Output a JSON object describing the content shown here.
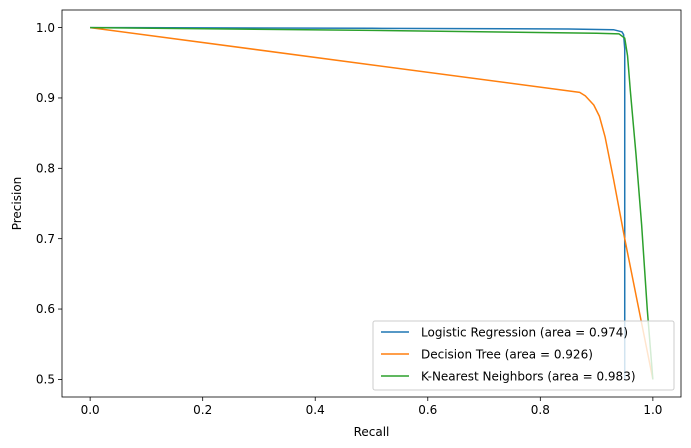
{
  "chart_data": {
    "type": "line",
    "title": "",
    "xlabel": "Recall",
    "ylabel": "Precision",
    "xlim": [
      -0.05,
      1.05
    ],
    "ylim": [
      0.475,
      1.025
    ],
    "xticks": [
      0.0,
      0.2,
      0.4,
      0.6,
      0.8,
      1.0
    ],
    "xtick_labels": [
      "0.0",
      "0.2",
      "0.4",
      "0.6",
      "0.8",
      "1.0"
    ],
    "yticks": [
      0.5,
      0.6,
      0.7,
      0.8,
      0.9,
      1.0
    ],
    "ytick_labels": [
      "0.5",
      "0.6",
      "0.7",
      "0.8",
      "0.9",
      "1.0"
    ],
    "grid": false,
    "legend_position": "lower right",
    "series": [
      {
        "name": "Logistic Regression (area = 0.974)",
        "color": "#1f77b4",
        "x": [
          0.0,
          0.5,
          0.85,
          0.93,
          0.945,
          0.948,
          0.95,
          0.95
        ],
        "y": [
          1.0,
          0.999,
          0.998,
          0.997,
          0.994,
          0.99,
          0.97,
          0.5
        ]
      },
      {
        "name": "Decision Tree (area = 0.926)",
        "color": "#ff7f0e",
        "x": [
          0.0,
          0.5,
          0.87,
          0.88,
          0.895,
          0.905,
          0.915,
          0.93,
          0.95,
          0.97,
          0.99,
          1.0
        ],
        "y": [
          1.0,
          0.947,
          0.908,
          0.903,
          0.89,
          0.874,
          0.845,
          0.785,
          0.7,
          0.62,
          0.54,
          0.5
        ]
      },
      {
        "name": "K-Nearest Neighbors (area = 0.983)",
        "color": "#2ca02c",
        "x": [
          0.0,
          0.5,
          0.9,
          0.94,
          0.95,
          0.955,
          0.96,
          0.97,
          0.98,
          0.99,
          1.0
        ],
        "y": [
          1.0,
          0.996,
          0.992,
          0.991,
          0.985,
          0.96,
          0.91,
          0.82,
          0.72,
          0.6,
          0.5
        ]
      }
    ]
  }
}
